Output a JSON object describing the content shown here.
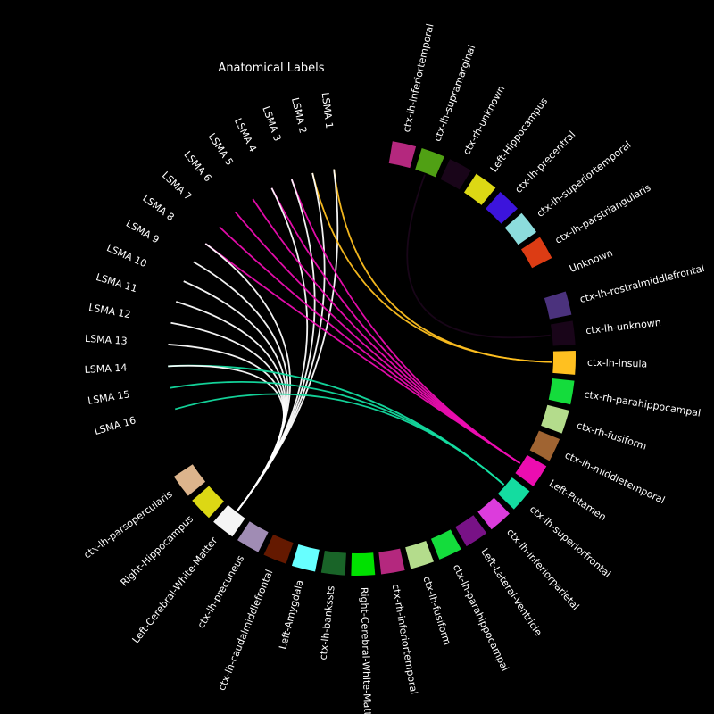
{
  "title": "Anatomical Labels",
  "lsma_labels": [
    "LSMA 1",
    "LSMA 2",
    "LSMA 3",
    "LSMA 4",
    "LSMA 5",
    "LSMA 6",
    "LSMA 7",
    "LSMA 8",
    "LSMA 9",
    "LSMA 10",
    "LSMA 11",
    "LSMA 12",
    "LSMA 13",
    "LSMA 14",
    "LSMA 15",
    "LSMA 16"
  ],
  "nodes": [
    {
      "label": "ctx-lh-inferiortemporal",
      "color": "#b4287e"
    },
    {
      "label": "ctx-lh-supramarginal",
      "color": "#50a014"
    },
    {
      "label": "ctx-rh-unknown",
      "color": "#190519"
    },
    {
      "label": "Left-Hippocampus",
      "color": "#dcd814"
    },
    {
      "label": "ctx-lh-precentral",
      "color": "#3c14dc"
    },
    {
      "label": "ctx-lh-superiortemporal",
      "color": "#8cdcdc"
    },
    {
      "label": "ctx-lh-parstriangularis",
      "color": "#dc3c14"
    },
    {
      "label": "Unknown",
      "color": "#000000"
    },
    {
      "label": "ctx-lh-rostralmiddlefrontal",
      "color": "#4b327d"
    },
    {
      "label": "ctx-lh-unknown",
      "color": "#190519"
    },
    {
      "label": "ctx-lh-insula",
      "color": "#ffc020"
    },
    {
      "label": "ctx-rh-parahippocampal",
      "color": "#14dc3c"
    },
    {
      "label": "ctx-rh-fusiform",
      "color": "#b4dc8c"
    },
    {
      "label": "ctx-lh-middletemporal",
      "color": "#a06432"
    },
    {
      "label": "Left-Putamen",
      "color": "#ec0db0"
    },
    {
      "label": "ctx-lh-superiorfrontal",
      "color": "#14dca0"
    },
    {
      "label": "ctx-lh-inferiorparietal",
      "color": "#dc3cdc"
    },
    {
      "label": "Left-Lateral-Ventricle",
      "color": "#781286"
    },
    {
      "label": "ctx-lh-parahippocampal",
      "color": "#14dc3c"
    },
    {
      "label": "ctx-lh-fusiform",
      "color": "#b4dc8c"
    },
    {
      "label": "ctx-rh-inferiortemporal",
      "color": "#b4287e"
    },
    {
      "label": "Right-Cerebral-White-Matter",
      "color": "#00e100"
    },
    {
      "label": "ctx-lh-bankssts",
      "color": "#196428"
    },
    {
      "label": "Left-Amygdala",
      "color": "#67ffff"
    },
    {
      "label": "ctx-lh-caudalmiddlefrontal",
      "color": "#641900"
    },
    {
      "label": "ctx-lh-precuneus",
      "color": "#a08cb4"
    },
    {
      "label": "Left-Cerebral-White-Matter",
      "color": "#f5f5f5"
    },
    {
      "label": "Right-Hippocampus",
      "color": "#dcd814"
    },
    {
      "label": "ctx-lh-parsopercularis",
      "color": "#dcb48c"
    }
  ],
  "connections": [
    {
      "from": "LSMA 1",
      "to": "ctx-lh-insula",
      "color": "#ffc020"
    },
    {
      "from": "LSMA 1",
      "to": "Left-Cerebral-White-Matter",
      "color": "#ffffff"
    },
    {
      "from": "LSMA 2",
      "to": "ctx-lh-insula",
      "color": "#ffc020"
    },
    {
      "from": "LSMA 2",
      "to": "Left-Cerebral-White-Matter",
      "color": "#ffffff"
    },
    {
      "from": "LSMA 3",
      "to": "Left-Putamen",
      "color": "#ec0db0"
    },
    {
      "from": "LSMA 3",
      "to": "Left-Cerebral-White-Matter",
      "color": "#ffffff"
    },
    {
      "from": "LSMA 4",
      "to": "Left-Putamen",
      "color": "#ec0db0"
    },
    {
      "from": "LSMA 4",
      "to": "Left-Cerebral-White-Matter",
      "color": "#ffffff"
    },
    {
      "from": "LSMA 5",
      "to": "Left-Putamen",
      "color": "#ec0db0"
    },
    {
      "from": "LSMA 6",
      "to": "Left-Putamen",
      "color": "#ec0db0"
    },
    {
      "from": "LSMA 7",
      "to": "Left-Putamen",
      "color": "#ec0db0"
    },
    {
      "from": "LSMA 8",
      "to": "Left-Putamen",
      "color": "#ec0db0"
    },
    {
      "from": "LSMA 8",
      "to": "Left-Cerebral-White-Matter",
      "color": "#ffffff"
    },
    {
      "from": "LSMA 9",
      "to": "Left-Cerebral-White-Matter",
      "color": "#ffffff"
    },
    {
      "from": "LSMA 10",
      "to": "Left-Cerebral-White-Matter",
      "color": "#ffffff"
    },
    {
      "from": "LSMA 11",
      "to": "Left-Cerebral-White-Matter",
      "color": "#ffffff"
    },
    {
      "from": "LSMA 12",
      "to": "Left-Cerebral-White-Matter",
      "color": "#ffffff"
    },
    {
      "from": "LSMA 13",
      "to": "Left-Cerebral-White-Matter",
      "color": "#ffffff"
    },
    {
      "from": "LSMA 14",
      "to": "ctx-lh-superiorfrontal",
      "color": "#14dca0"
    },
    {
      "from": "LSMA 14",
      "to": "Left-Cerebral-White-Matter",
      "color": "#ffffff"
    },
    {
      "from": "LSMA 15",
      "to": "ctx-lh-superiorfrontal",
      "color": "#14dca0"
    },
    {
      "from": "LSMA 16",
      "to": "ctx-lh-superiorfrontal",
      "color": "#14dca0"
    },
    {
      "from": "ctx-lh-unknown",
      "to": "ctx-lh-supramarginal",
      "color": "#190519"
    }
  ]
}
